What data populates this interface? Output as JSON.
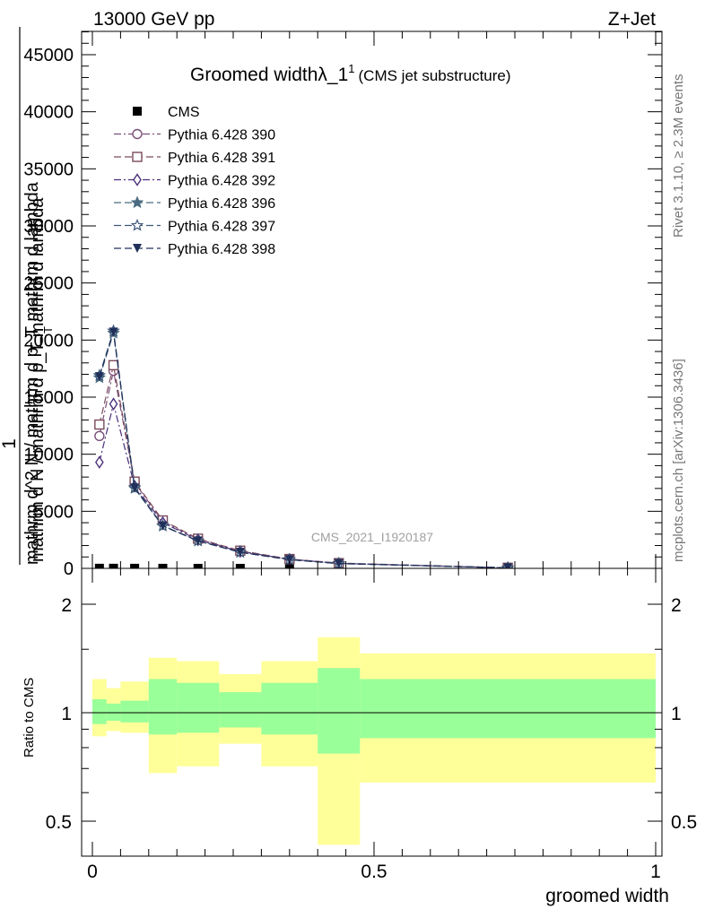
{
  "header": {
    "beam": "13000 GeV pp",
    "process": "Z+Jet",
    "side_rivet": "Rivet 3.1.10, ≥ 2.3M events",
    "side_site": "mcplots.cern.ch [arXiv:1306.3436]",
    "watermark": "CMS_2021_I1920187"
  },
  "main_plot": {
    "title": "Groomed widthλ_1",
    "title_sup": "1",
    "title_note": "(CMS jet substructure)",
    "ylabel_lines": [
      "1",
      "mathrm d N / mathrm d p_T mathrm d lambda",
      "mathrm d^2 N / mathrm d p_T mathrm d lambda"
    ],
    "ylabel_sub": "T",
    "yticks": [
      "0",
      "5000",
      "10000",
      "15000",
      "20000",
      "25000",
      "30000",
      "35000",
      "40000",
      "45000"
    ]
  },
  "ratio_plot": {
    "ylabel": "Ratio to CMS",
    "yticks": [
      "0.5",
      "1",
      "2"
    ],
    "xticks": [
      "0",
      "0.5",
      "1"
    ],
    "xlabel": "groomed width"
  },
  "chart_data": [
    {
      "type": "line",
      "title": "Groomed widthλ_1 1 (CMS jet substructure)",
      "xlabel": "groomed width",
      "ylabel": "1 / mathrm d N / mathrm d p_T mathrm d lambda  mathrm d^2 N / mathrm d p_T mathrm d lambda",
      "xlim": [
        -0.02,
        1.02
      ],
      "ylim": [
        0,
        46000
      ],
      "x": [
        0.0125,
        0.0375,
        0.075,
        0.125,
        0.1875,
        0.2625,
        0.35,
        0.4375,
        0.7375
      ],
      "bin_edges": [
        0,
        0.025,
        0.05,
        0.1,
        0.15,
        0.225,
        0.3,
        0.4,
        0.475,
        1.0
      ],
      "legend_position": "top-left",
      "series": [
        {
          "name": "CMS",
          "marker": "filled-square",
          "color": "#000000",
          "line": "none",
          "values": [
            10,
            10,
            8,
            5,
            3,
            2,
            1.5,
            1,
            0.3
          ]
        },
        {
          "name": "Pythia 6.428 390",
          "marker": "open-circle",
          "color": "#7a5079",
          "dash": "dash-dot",
          "values": [
            11600,
            17300,
            7500,
            4100,
            2550,
            1500,
            800,
            450,
            50
          ]
        },
        {
          "name": "Pythia 6.428 391",
          "marker": "open-square",
          "color": "#7a4a5c",
          "dash": "dash",
          "values": [
            12600,
            17800,
            7600,
            4200,
            2600,
            1550,
            820,
            460,
            55
          ]
        },
        {
          "name": "Pythia 6.428 392",
          "marker": "open-diamond",
          "color": "#4b2f7a",
          "dash": "dash-dot",
          "values": [
            9300,
            14400,
            7200,
            4000,
            2500,
            1480,
            790,
            440,
            50
          ]
        },
        {
          "name": "Pythia 6.428 396",
          "marker": "filled-star",
          "color": "#4a6b80",
          "dash": "dash",
          "values": [
            16700,
            20600,
            7000,
            3700,
            2400,
            1400,
            760,
            420,
            48
          ]
        },
        {
          "name": "Pythia 6.428 397",
          "marker": "open-star",
          "color": "#3e5878",
          "dash": "dash",
          "values": [
            16900,
            20800,
            7100,
            3750,
            2420,
            1420,
            770,
            425,
            48
          ]
        },
        {
          "name": "Pythia 6.428 398",
          "marker": "filled-triangle-down",
          "color": "#20305a",
          "dash": "dash",
          "values": [
            16800,
            20700,
            7050,
            3720,
            2410,
            1410,
            765,
            422,
            48
          ]
        }
      ]
    },
    {
      "type": "area",
      "title": "",
      "xlabel": "groomed width",
      "ylabel": "Ratio to CMS",
      "xlim": [
        -0.02,
        1.02
      ],
      "ylim": [
        0.42,
        2.35
      ],
      "y_scale": "log",
      "bin_edges": [
        0,
        0.025,
        0.05,
        0.1,
        0.15,
        0.225,
        0.3,
        0.4,
        0.475,
        1.0
      ],
      "reference_line": 1,
      "series": [
        {
          "name": "",
          "color": "#ffff99",
          "lower": [
            0.86,
            0.89,
            0.88,
            0.68,
            0.71,
            0.82,
            0.71,
            0.43,
            0.64
          ],
          "upper": [
            1.24,
            1.17,
            1.22,
            1.42,
            1.39,
            1.28,
            1.39,
            1.62,
            1.46
          ]
        },
        {
          "name": "",
          "color": "#99ff99",
          "lower": [
            0.93,
            0.95,
            0.94,
            0.87,
            0.88,
            0.91,
            0.87,
            0.77,
            0.85
          ],
          "upper": [
            1.09,
            1.06,
            1.08,
            1.24,
            1.21,
            1.14,
            1.21,
            1.33,
            1.24
          ]
        }
      ]
    }
  ]
}
